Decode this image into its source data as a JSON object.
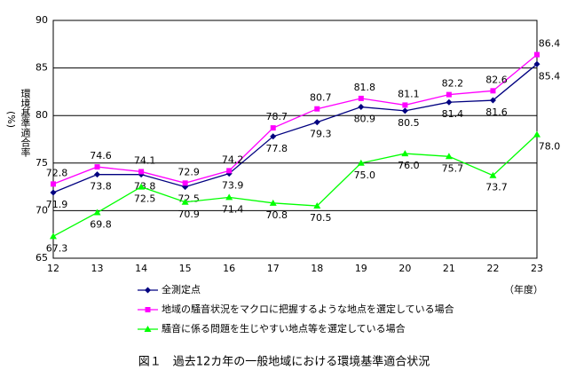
{
  "chart_data": {
    "type": "line",
    "title": "図１　過去12カ年の一般地域における環境基準適合状況",
    "y_label": "環境基準適合率",
    "y_unit": "(%)",
    "x_label": "（年度）",
    "x": [
      12,
      13,
      14,
      15,
      16,
      17,
      18,
      19,
      20,
      21,
      22,
      23
    ],
    "xlim": [
      12,
      23
    ],
    "ylim": [
      65,
      90
    ],
    "yticks": [
      65,
      70,
      75,
      80,
      85,
      90
    ],
    "grid": true,
    "series": [
      {
        "name": "全測定点",
        "color": "#000080",
        "marker": "diamond",
        "values": [
          71.9,
          73.8,
          73.8,
          72.5,
          73.9,
          77.8,
          79.3,
          80.9,
          80.5,
          81.4,
          81.6,
          85.4
        ]
      },
      {
        "name": "地域の騒音状況をマクロに把握するような地点を選定している場合",
        "color": "#ff00ff",
        "marker": "square",
        "values": [
          72.8,
          74.6,
          74.1,
          72.9,
          74.2,
          78.7,
          80.7,
          81.8,
          81.1,
          82.2,
          82.6,
          86.4
        ]
      },
      {
        "name": "騒音に係る問題を生じやすい地点等を選定している場合",
        "color": "#00ff00",
        "marker": "triangle",
        "values": [
          67.3,
          69.8,
          72.5,
          70.9,
          71.4,
          70.8,
          70.5,
          75.0,
          76.0,
          75.7,
          73.7,
          78.0
        ],
        "value_labels": [
          "67.3",
          "69.8",
          "72.5",
          "70.9",
          "71.4",
          "70.8",
          "70.5",
          "75.0",
          "76.0",
          "75.7",
          "73.7",
          "78.0"
        ]
      }
    ]
  }
}
